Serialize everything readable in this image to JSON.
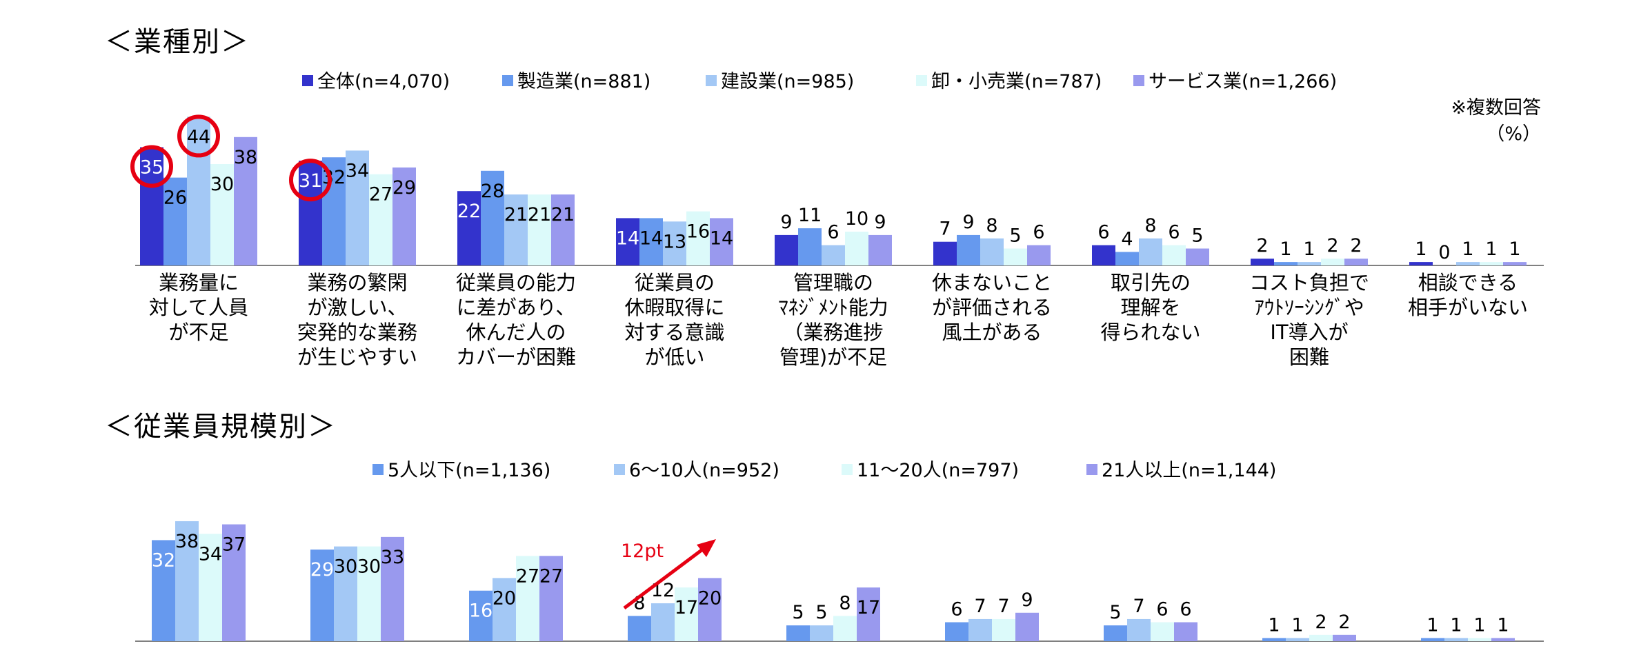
{
  "colors": {
    "navy": "#3333cc",
    "blue": "#6699ee",
    "light_blue": "#a3c8f5",
    "pale_cyan": "#dcfafa",
    "lavender": "#9999ee",
    "axis": "#808080",
    "highlight_red": "#e60012"
  },
  "top": {
    "title": "＜業種別＞",
    "note_line1": "※複数回答",
    "note_line2": "（%）",
    "legend": [
      {
        "label": "全体(n=4,070)",
        "color": "#3333cc"
      },
      {
        "label": "製造業(n=881)",
        "color": "#6699ee"
      },
      {
        "label": "建設業(n=985)",
        "color": "#a3c8f5"
      },
      {
        "label": "卸・小売業(n=787)",
        "color": "#dcfafa"
      },
      {
        "label": "サービス業(n=1,266)",
        "color": "#9999ee"
      }
    ]
  },
  "bottom": {
    "title": "＜従業員規模別＞",
    "legend": [
      {
        "label": "5人以下(n=1,136)",
        "color": "#6699ee"
      },
      {
        "label": "6～10人(n=952)",
        "color": "#a3c8f5"
      },
      {
        "label": "11～20人(n=797)",
        "color": "#dcfafa"
      },
      {
        "label": "21人以上(n=1,144)",
        "color": "#9999ee"
      }
    ],
    "annotation": "12pt"
  },
  "chart_data": [
    {
      "type": "bar",
      "title": "＜業種別＞",
      "categories": [
        "業務量に\n対して人員\nが不足",
        "業務の繁閑\nが激しい、\n突発的な業務\nが生じやすい",
        "従業員の能力\nに差があり、\n休んだ人の\nカバーが困難",
        "従業員の\n休暇取得に\n対する意識\nが低い",
        "管理職の\nﾏﾈｼﾞﾒﾝﾄ能力\n（業務進捗\n管理)が不足",
        "休まないこと\nが評価される\n風土がある",
        "取引先の\n理解を\n得られない",
        "コスト負担で\nｱｳﾄｿｰｼﾝｸﾞや\nIT導入が\n困難",
        "相談できる\n相手がいない"
      ],
      "series": [
        {
          "name": "全体(n=4,070)",
          "values": [
            35,
            31,
            22,
            14,
            9,
            7,
            6,
            2,
            1
          ]
        },
        {
          "name": "製造業(n=881)",
          "values": [
            26,
            32,
            28,
            14,
            11,
            9,
            4,
            1,
            0
          ]
        },
        {
          "name": "建設業(n=985)",
          "values": [
            44,
            34,
            21,
            13,
            6,
            8,
            8,
            1,
            1
          ]
        },
        {
          "name": "卸・小売業(n=787)",
          "values": [
            30,
            27,
            21,
            16,
            10,
            5,
            6,
            2,
            1
          ]
        },
        {
          "name": "サービス業(n=1,266)",
          "values": [
            38,
            29,
            21,
            14,
            9,
            6,
            5,
            2,
            1
          ]
        }
      ],
      "highlighted": [
        {
          "category": 0,
          "series": 0
        },
        {
          "category": 0,
          "series": 2
        },
        {
          "category": 1,
          "series": 0
        }
      ],
      "ylim": [
        0,
        45
      ],
      "ylabel": "（%）",
      "legend_position": "top"
    },
    {
      "type": "bar",
      "title": "＜従業員規模別＞",
      "categories": [
        "",
        "",
        "",
        "",
        "",
        "",
        "",
        "",
        ""
      ],
      "series": [
        {
          "name": "5人以下(n=1,136)",
          "values": [
            32,
            29,
            16,
            8,
            5,
            6,
            5,
            1,
            1
          ]
        },
        {
          "name": "6～10人(n=952)",
          "values": [
            38,
            30,
            20,
            12,
            5,
            7,
            7,
            1,
            1
          ]
        },
        {
          "name": "11～20人(n=797)",
          "values": [
            34,
            30,
            27,
            17,
            8,
            7,
            6,
            2,
            1
          ]
        },
        {
          "name": "21人以上(n=1,144)",
          "values": [
            37,
            33,
            27,
            20,
            17,
            9,
            6,
            2,
            1
          ]
        }
      ],
      "annotations": [
        {
          "category": 3,
          "text": "12pt"
        }
      ],
      "ylim": [
        0,
        40
      ],
      "legend_position": "top"
    }
  ]
}
